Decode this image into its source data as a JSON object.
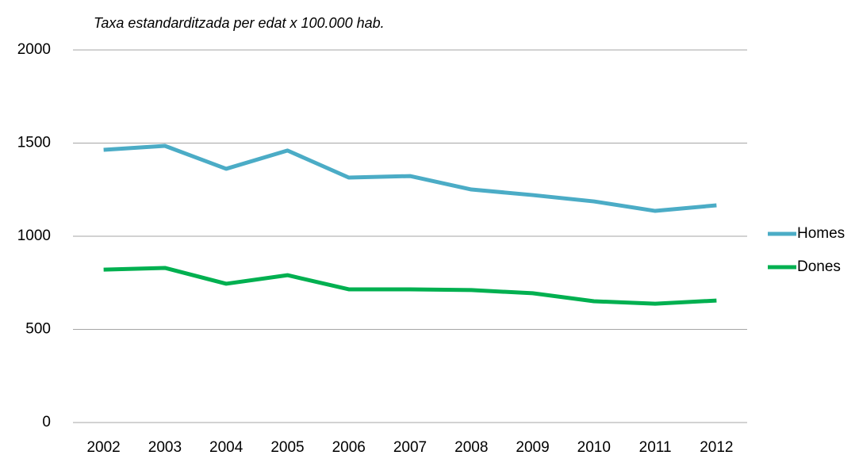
{
  "chart_data": {
    "type": "line",
    "title": "Taxa estandarditzada per edat x 100.000 hab.",
    "categories": [
      "2002",
      "2003",
      "2004",
      "2005",
      "2006",
      "2007",
      "2008",
      "2009",
      "2010",
      "2011",
      "2012"
    ],
    "series": [
      {
        "name": "Homes",
        "color": "#4bacc6",
        "values": [
          1464,
          1485,
          1362,
          1460,
          1315,
          1323,
          1251,
          1221,
          1187,
          1136,
          1166
        ]
      },
      {
        "name": "Dones",
        "color": "#00b050",
        "values": [
          821,
          830,
          745,
          791,
          715,
          715,
          711,
          694,
          651,
          638,
          655
        ]
      }
    ],
    "ylim": [
      0,
      2000
    ],
    "yticks": [
      0,
      500,
      1000,
      1500,
      2000
    ],
    "grid": true,
    "legend": "right"
  }
}
